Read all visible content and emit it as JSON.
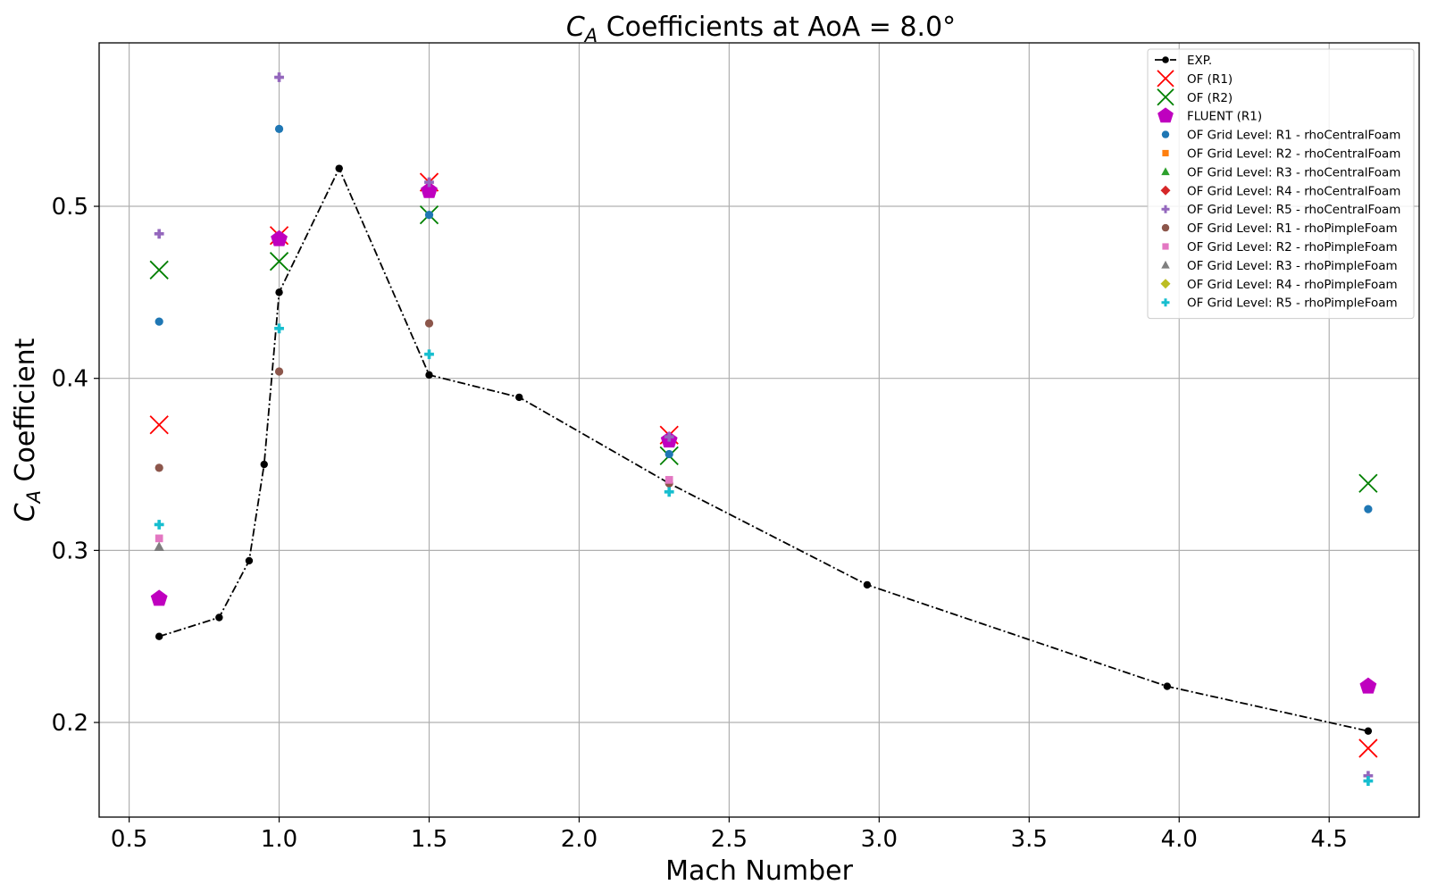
{
  "chart_data": {
    "type": "scatter",
    "title": {
      "symbol": "C",
      "subscript": "A",
      "rest": " Coefficients at AoA = 8.0°"
    },
    "xlabel": "Mach Number",
    "ylabel": {
      "symbol": "C",
      "subscript": "A",
      "rest": " Coefficient"
    },
    "xlim": [
      0.4,
      4.8
    ],
    "ylim": [
      0.145,
      0.595
    ],
    "xticks": [
      0.5,
      1.0,
      1.5,
      2.0,
      2.5,
      3.0,
      3.5,
      4.0,
      4.5
    ],
    "xtick_labels": [
      "0.5",
      "1.0",
      "1.5",
      "2.0",
      "2.5",
      "3.0",
      "3.5",
      "4.0",
      "4.5"
    ],
    "yticks": [
      0.2,
      0.3,
      0.4,
      0.5
    ],
    "ytick_labels": [
      "0.2",
      "0.3",
      "0.4",
      "0.5"
    ],
    "grid": true,
    "legend_position": "top-right",
    "series": [
      {
        "name": "EXP.",
        "marker": "circle",
        "line": "dashdot",
        "color": "#000000",
        "points": [
          [
            0.6,
            0.25
          ],
          [
            0.8,
            0.261
          ],
          [
            0.9,
            0.294
          ],
          [
            0.95,
            0.35
          ],
          [
            1.0,
            0.45
          ],
          [
            1.2,
            0.522
          ],
          [
            1.5,
            0.402
          ],
          [
            1.8,
            0.389
          ],
          [
            2.3,
            0.339
          ],
          [
            2.96,
            0.28
          ],
          [
            3.96,
            0.221
          ],
          [
            4.63,
            0.195
          ]
        ]
      },
      {
        "name": "OF (R1)",
        "marker": "x",
        "color": "#ff0000",
        "points": [
          [
            0.6,
            0.373
          ],
          [
            1.0,
            0.483
          ],
          [
            1.5,
            0.514
          ],
          [
            2.3,
            0.367
          ],
          [
            4.63,
            0.185
          ]
        ]
      },
      {
        "name": "OF (R2)",
        "marker": "x",
        "color": "#008000",
        "points": [
          [
            0.6,
            0.463
          ],
          [
            1.0,
            0.468
          ],
          [
            1.5,
            0.495
          ],
          [
            2.3,
            0.355
          ],
          [
            4.63,
            0.339
          ]
        ]
      },
      {
        "name": "FLUENT (R1)",
        "marker": "pentagon",
        "color": "#bf00bf",
        "points": [
          [
            0.6,
            0.272
          ],
          [
            1.0,
            0.481
          ],
          [
            1.5,
            0.509
          ],
          [
            2.3,
            0.364
          ],
          [
            4.63,
            0.221
          ]
        ]
      },
      {
        "name": "OF Grid Level: R1 - rhoCentralFoam",
        "marker": "circle",
        "color": "#1f77b4",
        "points": [
          [
            0.6,
            0.433
          ],
          [
            1.0,
            0.545
          ],
          [
            1.5,
            0.495
          ],
          [
            2.3,
            0.356
          ],
          [
            4.63,
            0.324
          ]
        ]
      },
      {
        "name": "OF Grid Level: R2 - rhoCentralFoam",
        "marker": "square",
        "color": "#ff7f0e",
        "points": []
      },
      {
        "name": "OF Grid Level: R3 - rhoCentralFoam",
        "marker": "triangle",
        "color": "#2ca02c",
        "points": []
      },
      {
        "name": "OF Grid Level: R4 - rhoCentralFoam",
        "marker": "diamond",
        "color": "#d62728",
        "points": []
      },
      {
        "name": "OF Grid Level: R5 - rhoCentralFoam",
        "marker": "plus",
        "color": "#9467bd",
        "points": [
          [
            0.6,
            0.484
          ],
          [
            1.0,
            0.575
          ],
          [
            1.5,
            0.514
          ],
          [
            2.3,
            0.366
          ],
          [
            4.63,
            0.169
          ]
        ]
      },
      {
        "name": "OF Grid Level: R1 - rhoPimpleFoam",
        "marker": "circle",
        "color": "#8c564b",
        "points": [
          [
            0.6,
            0.348
          ],
          [
            1.0,
            0.404
          ],
          [
            1.5,
            0.432
          ],
          [
            2.3,
            0.339
          ]
        ]
      },
      {
        "name": "OF Grid Level: R2 - rhoPimpleFoam",
        "marker": "square",
        "color": "#e377c2",
        "points": [
          [
            0.6,
            0.307
          ],
          [
            2.3,
            0.341
          ]
        ]
      },
      {
        "name": "OF Grid Level: R3 - rhoPimpleFoam",
        "marker": "triangle",
        "color": "#7f7f7f",
        "points": [
          [
            0.6,
            0.302
          ]
        ]
      },
      {
        "name": "OF Grid Level: R4 - rhoPimpleFoam",
        "marker": "diamond",
        "color": "#bcbd22",
        "points": []
      },
      {
        "name": "OF Grid Level: R5 - rhoPimpleFoam",
        "marker": "plus",
        "color": "#17becf",
        "points": [
          [
            0.6,
            0.315
          ],
          [
            1.0,
            0.429
          ],
          [
            1.5,
            0.414
          ],
          [
            2.3,
            0.334
          ],
          [
            4.63,
            0.166
          ]
        ]
      }
    ]
  }
}
